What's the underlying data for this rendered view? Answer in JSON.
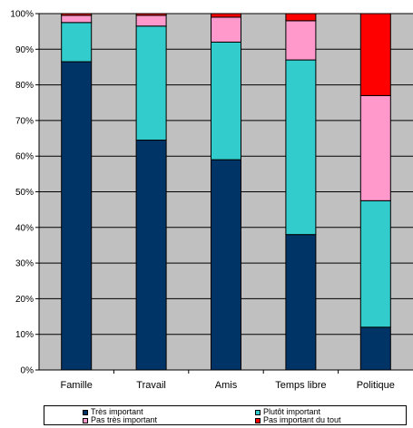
{
  "chart_data": {
    "type": "bar",
    "stacked": true,
    "percent": true,
    "categories": [
      "Famille",
      "Travail",
      "Amis",
      "Temps libre",
      "Politique"
    ],
    "series": [
      {
        "name": "Très important",
        "color": "#003366",
        "values": [
          86.5,
          64.5,
          59,
          38,
          12
        ]
      },
      {
        "name": "Plutôt important",
        "color": "#33CCCC",
        "values": [
          11,
          32,
          33,
          49,
          35.5
        ]
      },
      {
        "name": "Pas très important",
        "color": "#FF99CC",
        "values": [
          2,
          3,
          7,
          11,
          29.5
        ]
      },
      {
        "name": "Pas important du tout",
        "color": "#FF0000",
        "values": [
          0.5,
          0.5,
          1,
          2,
          23
        ]
      }
    ],
    "y_ticks": [
      "0%",
      "10%",
      "20%",
      "30%",
      "40%",
      "50%",
      "60%",
      "70%",
      "80%",
      "90%",
      "100%"
    ],
    "ylim": [
      0,
      100
    ],
    "grid": true,
    "plot_background": "#C0C0C0",
    "legend_position": "bottom"
  }
}
